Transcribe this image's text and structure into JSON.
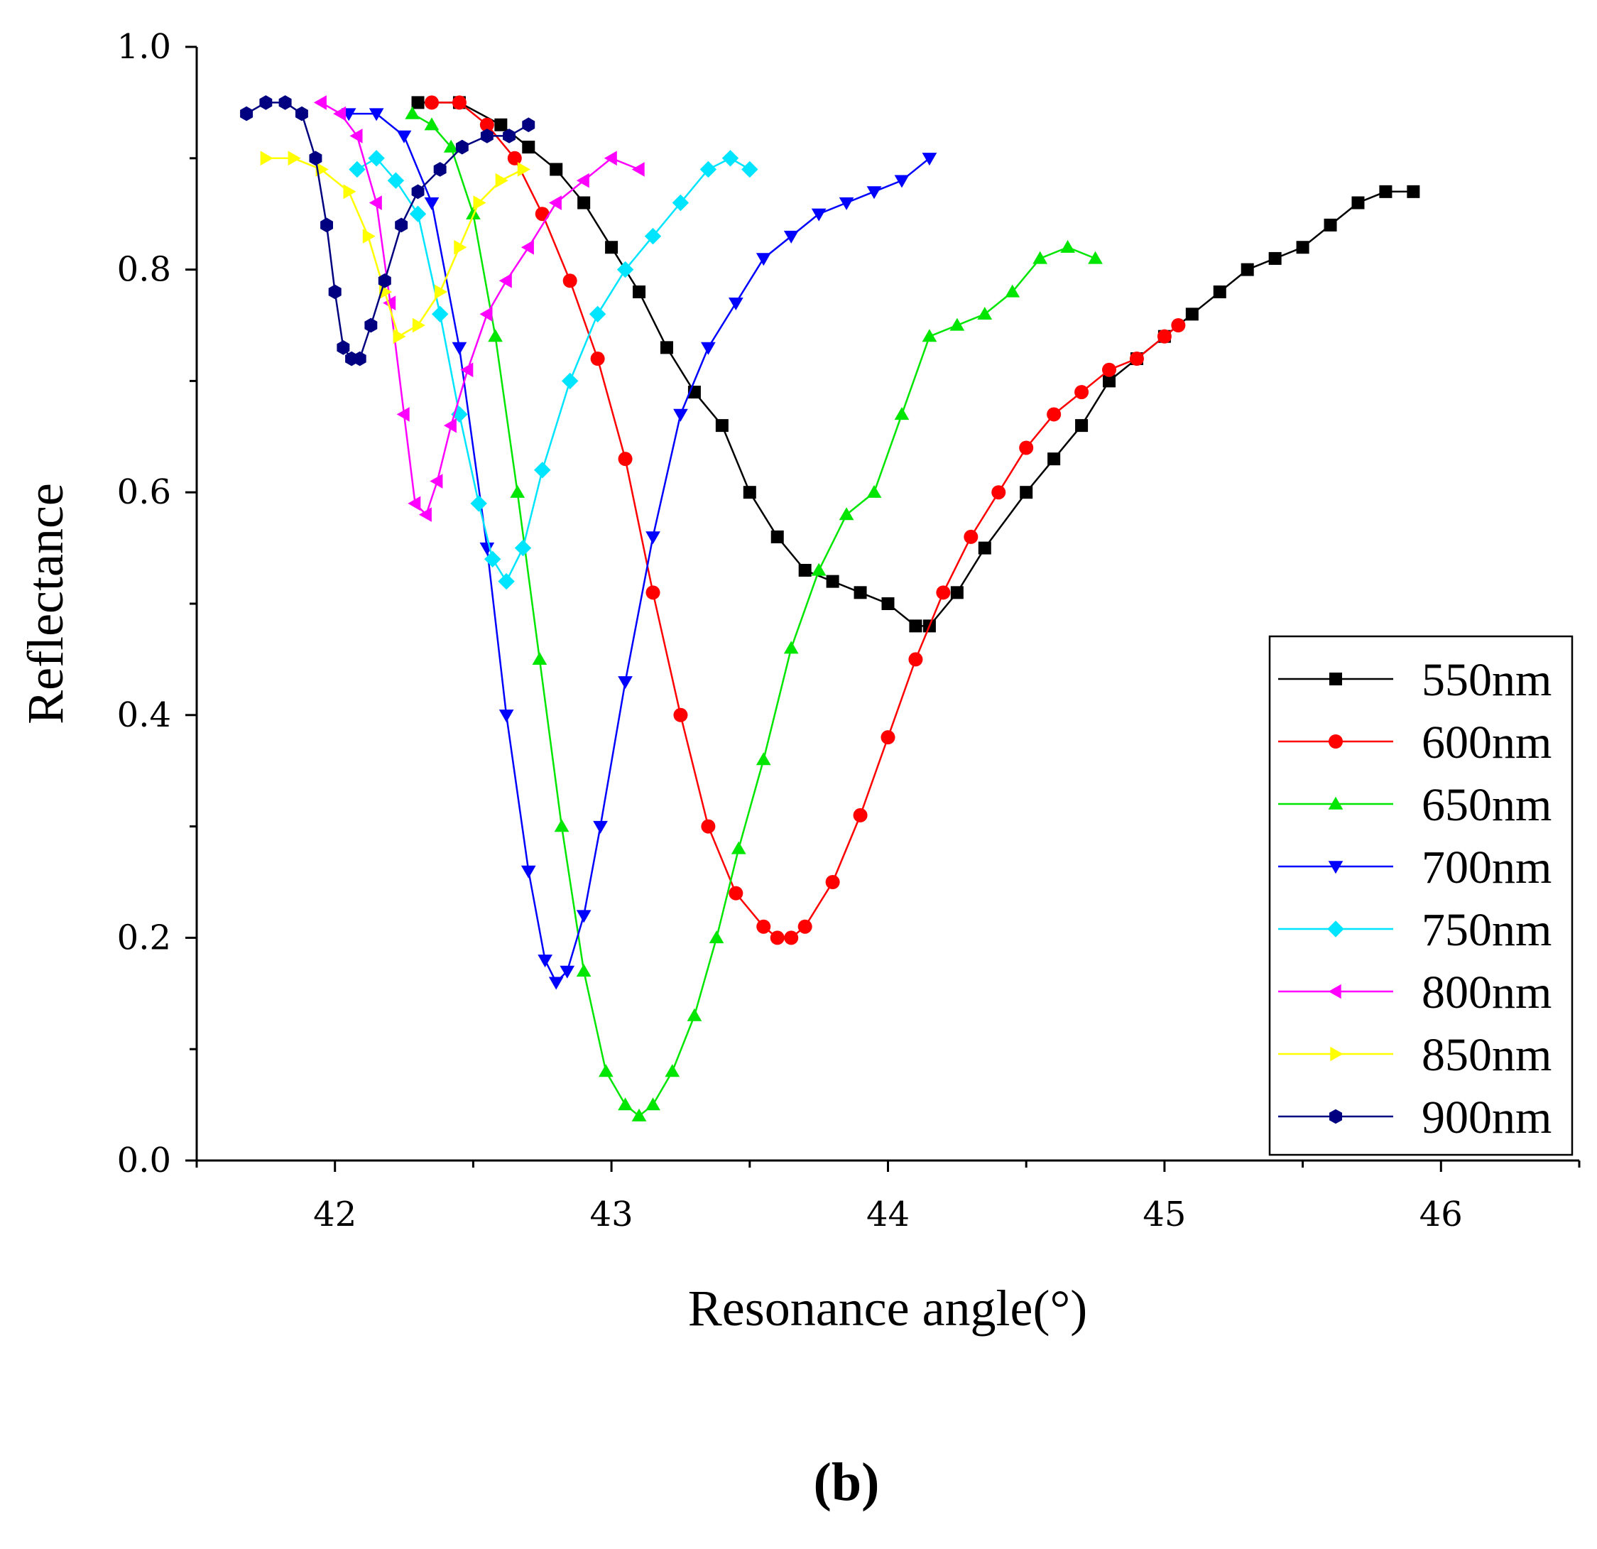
{
  "caption": "(b)",
  "chart_data": {
    "type": "line",
    "xlabel": "Resonance angle(°)",
    "ylabel": "Reflectance",
    "xlim": [
      41.5,
      46.5
    ],
    "ylim": [
      0.0,
      1.0
    ],
    "xticks": [
      42,
      43,
      44,
      45,
      46
    ],
    "yticks": [
      0.0,
      0.2,
      0.4,
      0.6,
      0.8,
      1.0
    ],
    "xtick_labels": [
      "42",
      "43",
      "44",
      "45",
      "46"
    ],
    "ytick_labels": [
      "0.0",
      "0.2",
      "0.4",
      "0.6",
      "0.8",
      "1.0"
    ],
    "grid": false,
    "legend_position": "bottom-right",
    "series": [
      {
        "name": "550nm",
        "color": "#000000",
        "marker": "square",
        "x": [
          42.3,
          42.45,
          42.6,
          42.7,
          42.8,
          42.9,
          43.0,
          43.1,
          43.2,
          43.3,
          43.4,
          43.5,
          43.6,
          43.7,
          43.8,
          43.9,
          44.0,
          44.1,
          44.15,
          44.25,
          44.35,
          44.5,
          44.6,
          44.7,
          44.8,
          44.9,
          45.0,
          45.1,
          45.2,
          45.3,
          45.4,
          45.5,
          45.6,
          45.7,
          45.8,
          45.9
        ],
        "y": [
          0.95,
          0.95,
          0.93,
          0.91,
          0.89,
          0.86,
          0.82,
          0.78,
          0.73,
          0.69,
          0.66,
          0.6,
          0.56,
          0.53,
          0.52,
          0.51,
          0.5,
          0.48,
          0.48,
          0.51,
          0.55,
          0.6,
          0.63,
          0.66,
          0.7,
          0.72,
          0.74,
          0.76,
          0.78,
          0.8,
          0.81,
          0.82,
          0.84,
          0.86,
          0.87,
          0.87
        ]
      },
      {
        "name": "600nm",
        "color": "#ff0000",
        "marker": "circle",
        "x": [
          42.35,
          42.45,
          42.55,
          42.65,
          42.75,
          42.85,
          42.95,
          43.05,
          43.15,
          43.25,
          43.35,
          43.45,
          43.55,
          43.6,
          43.65,
          43.7,
          43.8,
          43.9,
          44.0,
          44.1,
          44.2,
          44.3,
          44.4,
          44.5,
          44.6,
          44.7,
          44.8,
          44.9,
          45.0,
          45.05
        ],
        "y": [
          0.95,
          0.95,
          0.93,
          0.9,
          0.85,
          0.79,
          0.72,
          0.63,
          0.51,
          0.4,
          0.3,
          0.24,
          0.21,
          0.2,
          0.2,
          0.21,
          0.25,
          0.31,
          0.38,
          0.45,
          0.51,
          0.56,
          0.6,
          0.64,
          0.67,
          0.69,
          0.71,
          0.72,
          0.74,
          0.75
        ]
      },
      {
        "name": "650nm",
        "color": "#00e600",
        "marker": "triangle-up",
        "x": [
          42.28,
          42.35,
          42.42,
          42.5,
          42.58,
          42.66,
          42.74,
          42.82,
          42.9,
          42.98,
          43.05,
          43.1,
          43.15,
          43.22,
          43.3,
          43.38,
          43.46,
          43.55,
          43.65,
          43.75,
          43.85,
          43.95,
          44.05,
          44.15,
          44.25,
          44.35,
          44.45,
          44.55,
          44.65,
          44.75
        ],
        "y": [
          0.94,
          0.93,
          0.91,
          0.85,
          0.74,
          0.6,
          0.45,
          0.3,
          0.17,
          0.08,
          0.05,
          0.04,
          0.05,
          0.08,
          0.13,
          0.2,
          0.28,
          0.36,
          0.46,
          0.53,
          0.58,
          0.6,
          0.67,
          0.74,
          0.75,
          0.76,
          0.78,
          0.81,
          0.82,
          0.81
        ]
      },
      {
        "name": "700nm",
        "color": "#0000ff",
        "marker": "triangle-down",
        "x": [
          42.05,
          42.15,
          42.25,
          42.35,
          42.45,
          42.55,
          42.62,
          42.7,
          42.76,
          42.8,
          42.84,
          42.9,
          42.96,
          43.05,
          43.15,
          43.25,
          43.35,
          43.45,
          43.55,
          43.65,
          43.75,
          43.85,
          43.95,
          44.05,
          44.15
        ],
        "y": [
          0.94,
          0.94,
          0.92,
          0.86,
          0.73,
          0.55,
          0.4,
          0.26,
          0.18,
          0.16,
          0.17,
          0.22,
          0.3,
          0.43,
          0.56,
          0.67,
          0.73,
          0.77,
          0.81,
          0.83,
          0.85,
          0.86,
          0.87,
          0.88,
          0.9
        ]
      },
      {
        "name": "750nm",
        "color": "#00e5ff",
        "marker": "diamond",
        "x": [
          42.08,
          42.15,
          42.22,
          42.3,
          42.38,
          42.45,
          42.52,
          42.57,
          42.62,
          42.68,
          42.75,
          42.85,
          42.95,
          43.05,
          43.15,
          43.25,
          43.35,
          43.43,
          43.5
        ],
        "y": [
          0.89,
          0.9,
          0.88,
          0.85,
          0.76,
          0.67,
          0.59,
          0.54,
          0.52,
          0.55,
          0.62,
          0.7,
          0.76,
          0.8,
          0.83,
          0.86,
          0.89,
          0.9,
          0.89
        ]
      },
      {
        "name": "800nm",
        "color": "#ff00ff",
        "marker": "triangle-left",
        "x": [
          41.95,
          42.02,
          42.08,
          42.15,
          42.2,
          42.25,
          42.29,
          42.33,
          42.37,
          42.42,
          42.48,
          42.55,
          42.62,
          42.7,
          42.8,
          42.9,
          43.0,
          43.1
        ],
        "y": [
          0.95,
          0.94,
          0.92,
          0.86,
          0.77,
          0.67,
          0.59,
          0.58,
          0.61,
          0.66,
          0.71,
          0.76,
          0.79,
          0.82,
          0.86,
          0.88,
          0.9,
          0.89
        ]
      },
      {
        "name": "850nm",
        "color": "#ffff00",
        "marker": "triangle-right",
        "x": [
          41.75,
          41.85,
          41.95,
          42.05,
          42.12,
          42.18,
          42.23,
          42.3,
          42.38,
          42.45,
          42.52,
          42.6,
          42.68
        ],
        "y": [
          0.9,
          0.9,
          0.89,
          0.87,
          0.83,
          0.78,
          0.74,
          0.75,
          0.78,
          0.82,
          0.86,
          0.88,
          0.89
        ]
      },
      {
        "name": "900nm",
        "color": "#000080",
        "marker": "hexagon",
        "x": [
          41.68,
          41.75,
          41.82,
          41.88,
          41.93,
          41.97,
          42.0,
          42.03,
          42.06,
          42.09,
          42.13,
          42.18,
          42.24,
          42.3,
          42.38,
          42.46,
          42.55,
          42.63,
          42.7
        ],
        "y": [
          0.94,
          0.95,
          0.95,
          0.94,
          0.9,
          0.84,
          0.78,
          0.73,
          0.72,
          0.72,
          0.75,
          0.79,
          0.84,
          0.87,
          0.89,
          0.91,
          0.92,
          0.92,
          0.93
        ]
      }
    ]
  }
}
